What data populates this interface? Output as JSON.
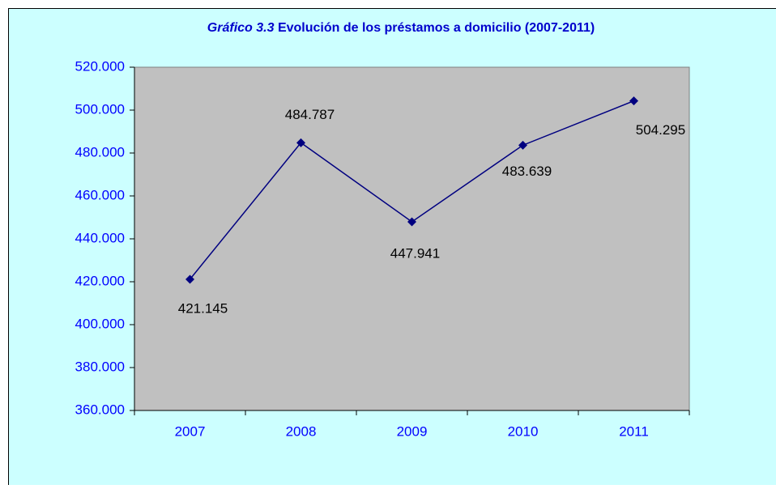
{
  "chart_data": {
    "type": "line",
    "title_label": "Gráfico 3.3",
    "title": "Evolución de los préstamos a domicilio (2007-2011)",
    "categories": [
      "2007",
      "2008",
      "2009",
      "2010",
      "2011"
    ],
    "series": [
      {
        "color": "#000080",
        "values": [
          421145,
          484787,
          447941,
          483639,
          504295
        ],
        "value_labels": [
          "421.145",
          "484.787",
          "447.941",
          "483.639",
          "504.295"
        ]
      }
    ],
    "ylim": [
      360000,
      520000
    ],
    "yticks": [
      {
        "value": 360000,
        "label": "360.000"
      },
      {
        "value": 380000,
        "label": "380.000"
      },
      {
        "value": 400000,
        "label": "400.000"
      },
      {
        "value": 420000,
        "label": "420.000"
      },
      {
        "value": 440000,
        "label": "440.000"
      },
      {
        "value": 460000,
        "label": "460.000"
      },
      {
        "value": 480000,
        "label": "480.000"
      },
      {
        "value": 500000,
        "label": "500.000"
      },
      {
        "value": 520000,
        "label": "520.000"
      }
    ],
    "grid": false,
    "plot_background": "#c0c0c0",
    "background": "#ccffff"
  }
}
